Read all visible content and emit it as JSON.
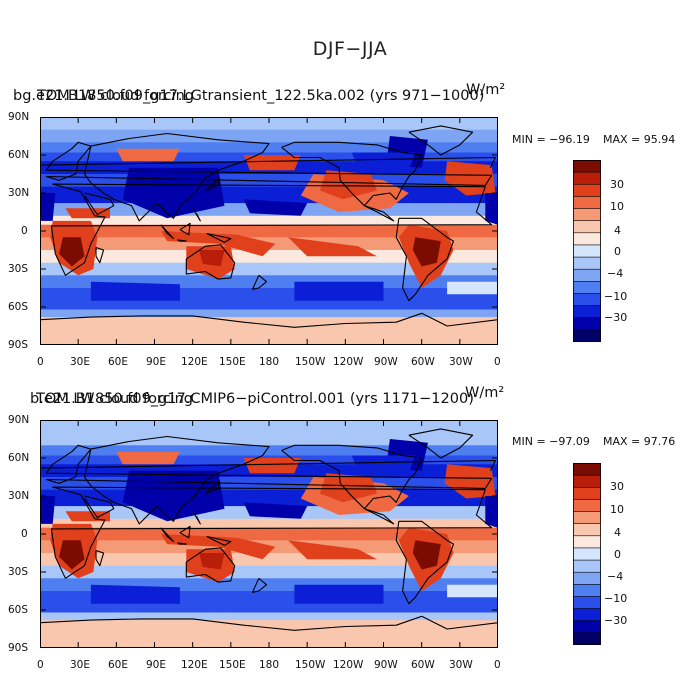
{
  "figure": {
    "title": "DJF−JJA",
    "colors": {
      "levels": [
        "#000066",
        "#0000aa",
        "#0a1fd6",
        "#2a4fea",
        "#4e7ef0",
        "#7ea5f4",
        "#a9c6f8",
        "#d5e5fb",
        "#fbe9df",
        "#f9c7ae",
        "#f59a76",
        "#ef6a43",
        "#e0401c",
        "#b81e0a",
        "#7a0c02"
      ]
    }
  },
  "panels": [
    {
      "id": "top",
      "case_name": "bg.e21.B1850.f09_g17.LGtransient_122.5ka.002 (yrs 971−1000)",
      "variable": "TOM LW cloud forcing",
      "units": "W/m²",
      "min_label": "MIN = −96.19",
      "max_label": "MAX =  95.94"
    },
    {
      "id": "bottom",
      "case_name": "b.e21.B1850.f09_g17.CMIP6−piControl.001 (yrs 1171−1200)",
      "variable": "TOM LW cloud forcing",
      "units": "W/m²",
      "min_label": "MIN = −97.09",
      "max_label": "MAX =  97.76"
    }
  ],
  "axes": {
    "lat_ticks": [
      "90N",
      "60N",
      "30N",
      "0",
      "30S",
      "60S",
      "90S"
    ],
    "lon_ticks": [
      "0",
      "30E",
      "60E",
      "90E",
      "120E",
      "150E",
      "180",
      "150W",
      "120W",
      "90W",
      "60W",
      "30W",
      "0"
    ]
  },
  "colorbar": {
    "labels": [
      "30",
      "10",
      "4",
      "0",
      "−4",
      "−10",
      "−30"
    ]
  }
}
